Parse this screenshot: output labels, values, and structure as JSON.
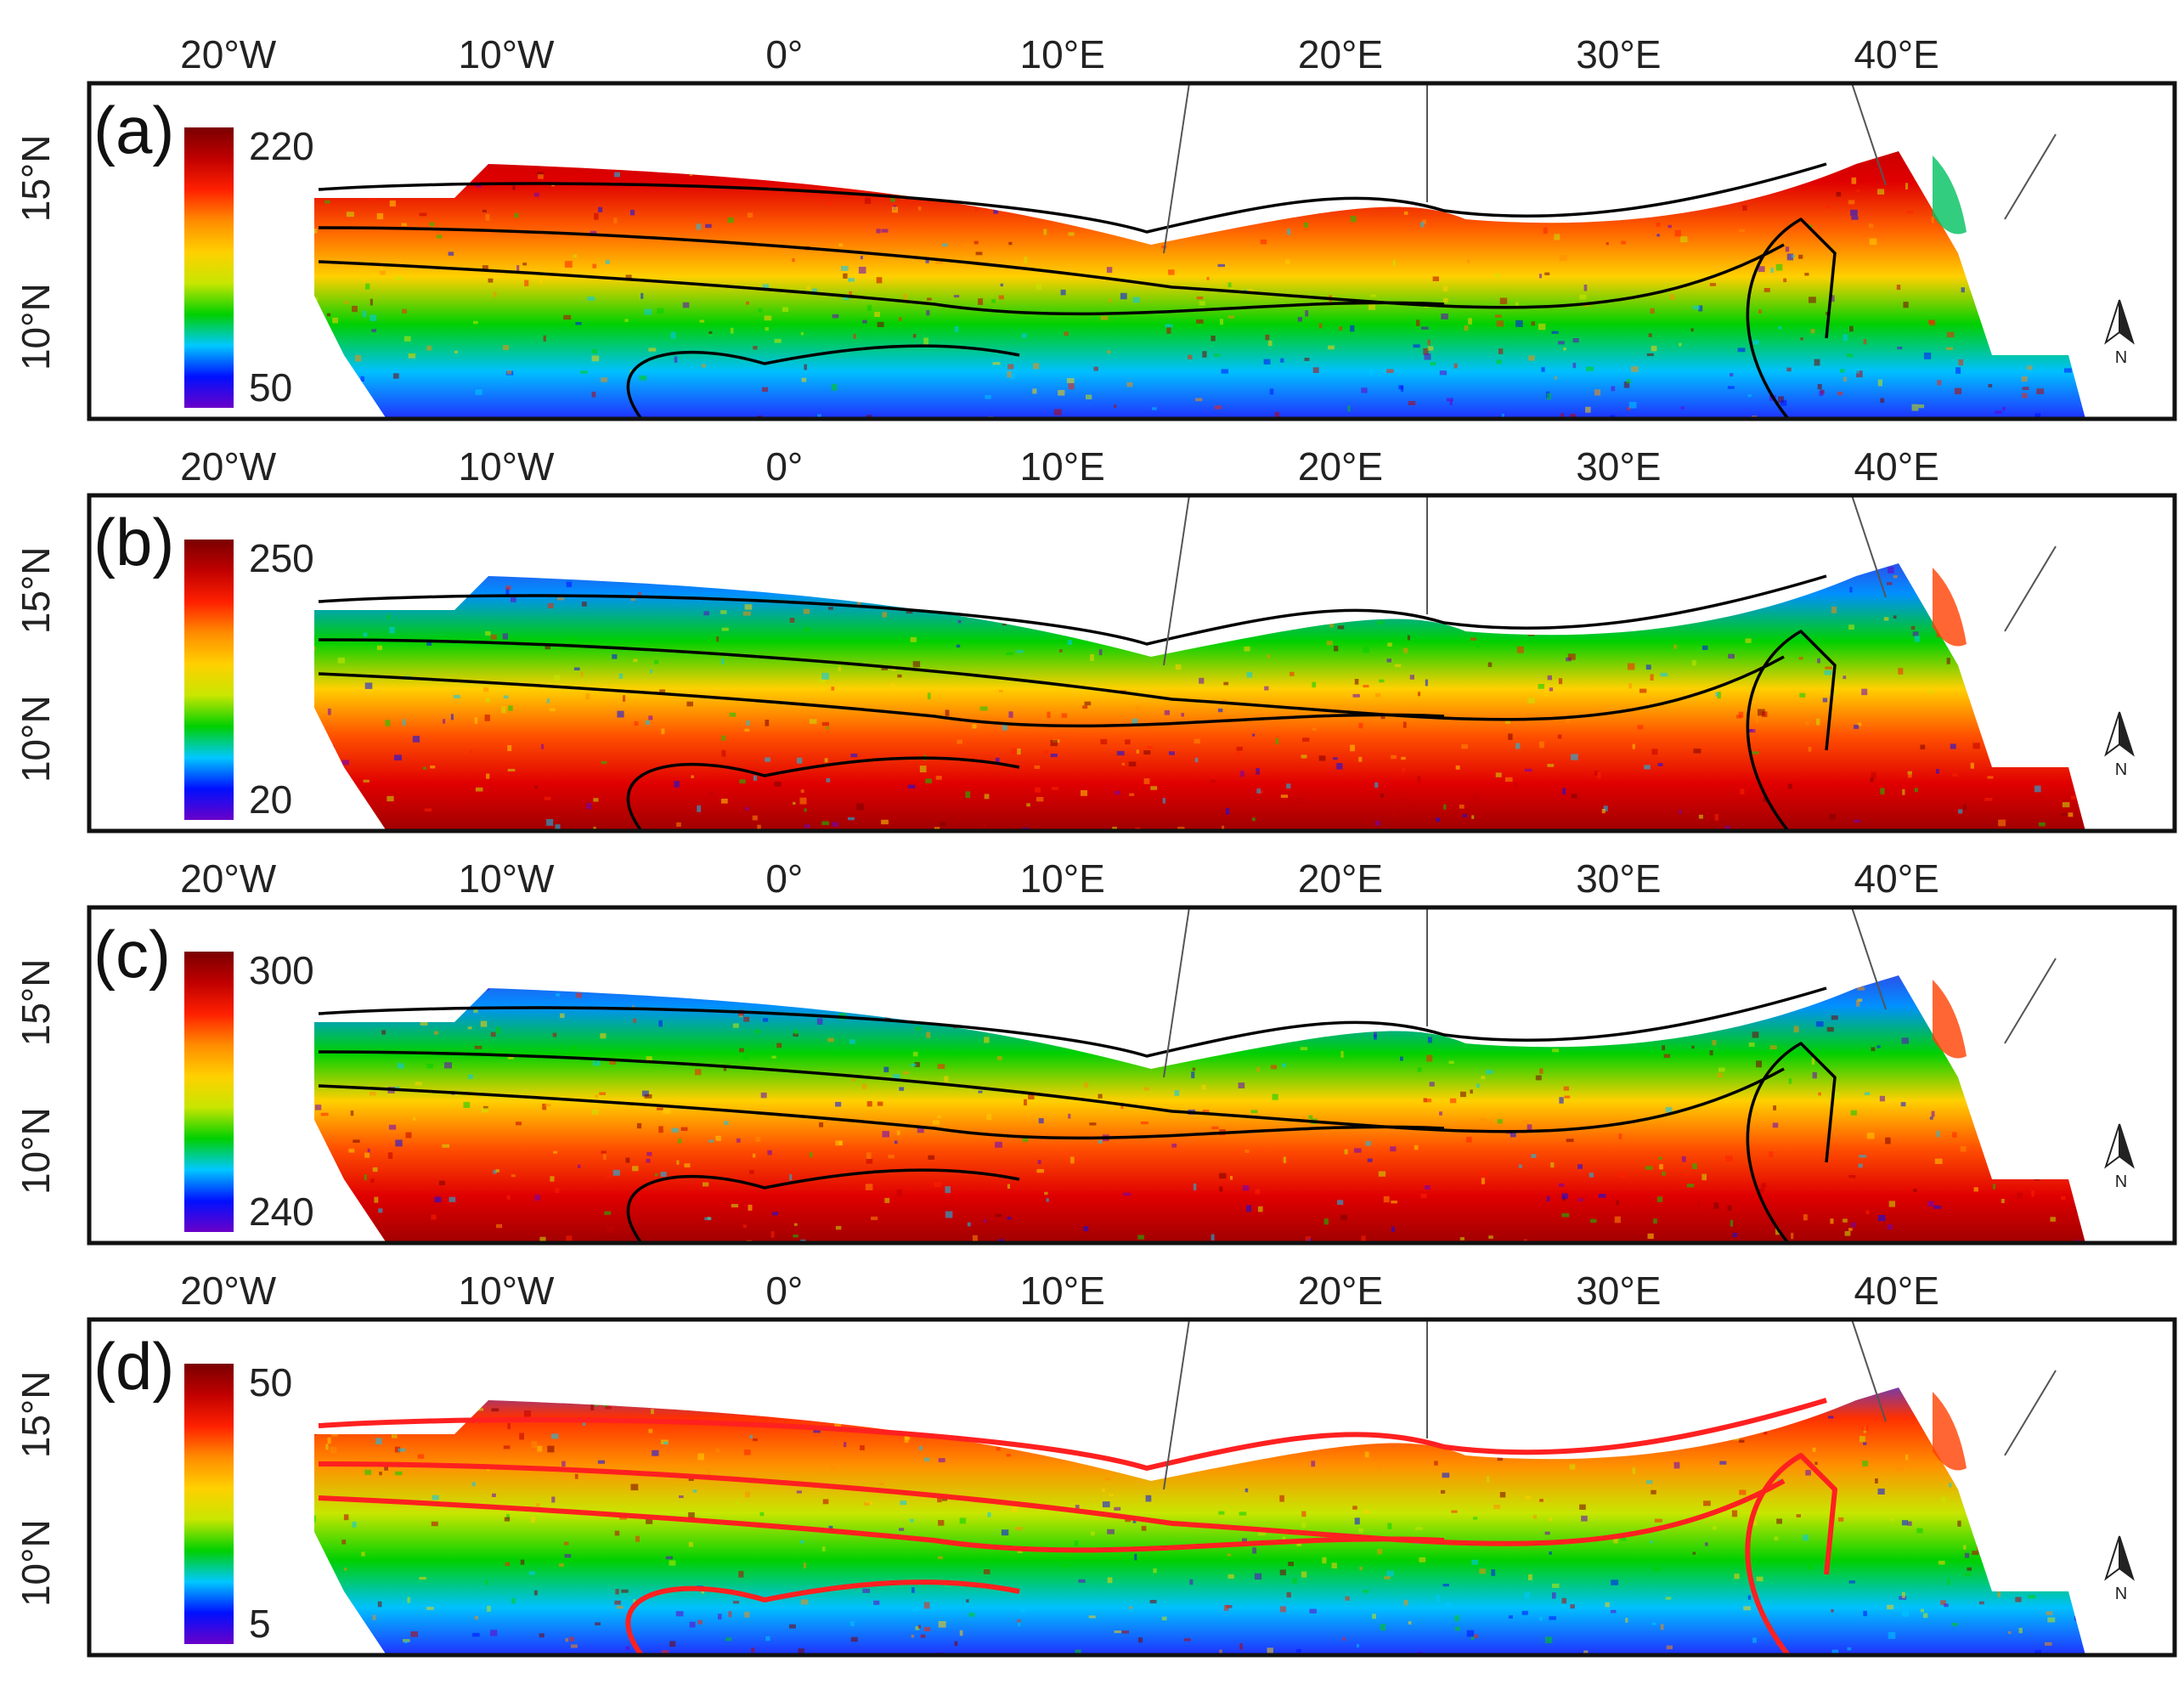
{
  "figure": {
    "lon_ticks": [
      "20°W",
      "10°W",
      "0°",
      "10°E",
      "20°E",
      "30°E",
      "40°E"
    ],
    "lat_ticks": [
      "15°N",
      "10°N"
    ],
    "north_arrow_label": "N",
    "colormap": [
      "#6a00c8",
      "#0010ff",
      "#00c8ff",
      "#00d000",
      "#c8e600",
      "#ffd000",
      "#ff8c00",
      "#ff2000",
      "#c00000",
      "#7a0000"
    ],
    "panels": [
      {
        "label": "(a)",
        "colorbar_max": "220",
        "colorbar_min": "50",
        "boundary_color": "#000000",
        "pattern": "north-high"
      },
      {
        "label": "(b)",
        "colorbar_max": "250",
        "colorbar_min": "20",
        "boundary_color": "#000000",
        "pattern": "south-high"
      },
      {
        "label": "(c)",
        "colorbar_max": "300",
        "colorbar_min": "240",
        "boundary_color": "#000000",
        "pattern": "south-high"
      },
      {
        "label": "(d)",
        "colorbar_max": "50",
        "colorbar_min": "5",
        "boundary_color": "#ff2020",
        "pattern": "mixed"
      }
    ]
  }
}
